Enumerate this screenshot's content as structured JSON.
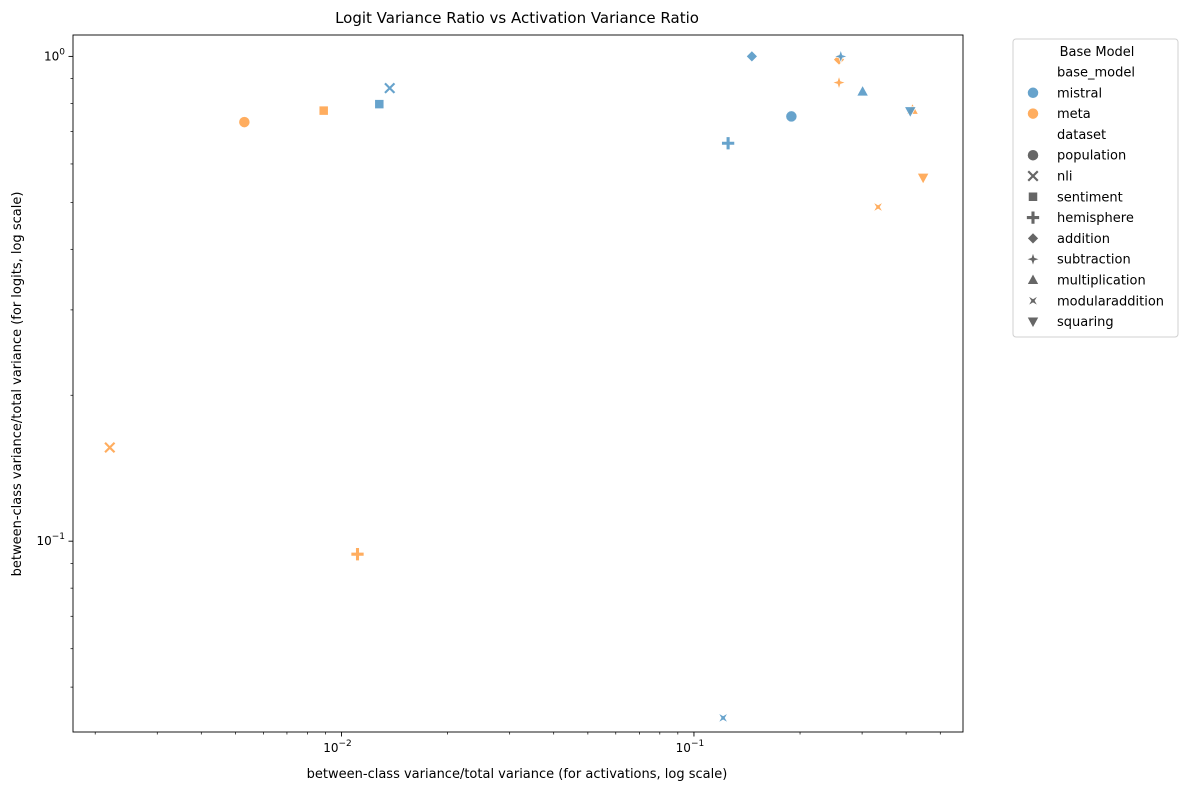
{
  "chart_data": {
    "type": "scatter",
    "title": "Logit Variance Ratio vs Activation Variance Ratio",
    "xlabel": "between-class variance/total variance (for activations, log scale)",
    "ylabel": "between-class variance/total variance (for logits, log scale)",
    "xscale": "log",
    "yscale": "log",
    "xlim": [
      0.00173,
      0.58
    ],
    "ylim": [
      0.0404,
      1.107
    ],
    "x_ticks": [
      {
        "value": 0.01,
        "base": "10",
        "exp": "−2"
      },
      {
        "value": 0.1,
        "base": "10",
        "exp": "−1"
      }
    ],
    "y_ticks": [
      {
        "value": 0.1,
        "base": "10",
        "exp": "−1"
      },
      {
        "value": 1.0,
        "base": "10",
        "exp": "0"
      }
    ],
    "grid": false,
    "legend": {
      "placement": "outside-top-right",
      "title": "Base Model",
      "hue_header": "base_model",
      "style_header": "dataset",
      "models": [
        {
          "key": "mistral",
          "label": "mistral",
          "color": "#5799c7"
        },
        {
          "key": "meta",
          "label": "meta",
          "color": "#ffa44e"
        }
      ],
      "datasets": [
        {
          "key": "population",
          "label": "population",
          "marker": "circle"
        },
        {
          "key": "nli",
          "label": "nli",
          "marker": "x"
        },
        {
          "key": "sentiment",
          "label": "sentiment",
          "marker": "square"
        },
        {
          "key": "hemisphere",
          "label": "hemisphere",
          "marker": "plus"
        },
        {
          "key": "addition",
          "label": "addition",
          "marker": "diamond"
        },
        {
          "key": "subtraction",
          "label": "subtraction",
          "marker": "star4"
        },
        {
          "key": "multiplication",
          "label": "multiplication",
          "marker": "triangle-up"
        },
        {
          "key": "modularaddition",
          "label": "modularaddition",
          "marker": "star4x"
        },
        {
          "key": "squaring",
          "label": "squaring",
          "marker": "triangle-down"
        }
      ],
      "marker_color": "#666666"
    },
    "points": [
      {
        "model": "meta",
        "dataset": "population",
        "x": 0.0053,
        "y": 0.732
      },
      {
        "model": "meta",
        "dataset": "nli",
        "x": 0.0022,
        "y": 0.156
      },
      {
        "model": "meta",
        "dataset": "sentiment",
        "x": 0.0089,
        "y": 0.773
      },
      {
        "model": "meta",
        "dataset": "hemisphere",
        "x": 0.0111,
        "y": 0.094
      },
      {
        "model": "meta",
        "dataset": "addition",
        "x": 0.258,
        "y": 0.985
      },
      {
        "model": "meta",
        "dataset": "subtraction",
        "x": 0.258,
        "y": 0.883
      },
      {
        "model": "meta",
        "dataset": "multiplication",
        "x": 0.417,
        "y": 0.776
      },
      {
        "model": "meta",
        "dataset": "modularaddition",
        "x": 0.333,
        "y": 0.489
      },
      {
        "model": "meta",
        "dataset": "squaring",
        "x": 0.447,
        "y": 0.562
      },
      {
        "model": "mistral",
        "dataset": "population",
        "x": 0.189,
        "y": 0.752
      },
      {
        "model": "mistral",
        "dataset": "nli",
        "x": 0.0137,
        "y": 0.86
      },
      {
        "model": "mistral",
        "dataset": "sentiment",
        "x": 0.0128,
        "y": 0.797
      },
      {
        "model": "mistral",
        "dataset": "hemisphere",
        "x": 0.125,
        "y": 0.662
      },
      {
        "model": "mistral",
        "dataset": "addition",
        "x": 0.146,
        "y": 1.0
      },
      {
        "model": "mistral",
        "dataset": "subtraction",
        "x": 0.261,
        "y": 1.0
      },
      {
        "model": "mistral",
        "dataset": "multiplication",
        "x": 0.301,
        "y": 0.846
      },
      {
        "model": "mistral",
        "dataset": "modularaddition",
        "x": 0.121,
        "y": 0.0432
      },
      {
        "model": "mistral",
        "dataset": "squaring",
        "x": 0.411,
        "y": 0.771
      }
    ]
  }
}
